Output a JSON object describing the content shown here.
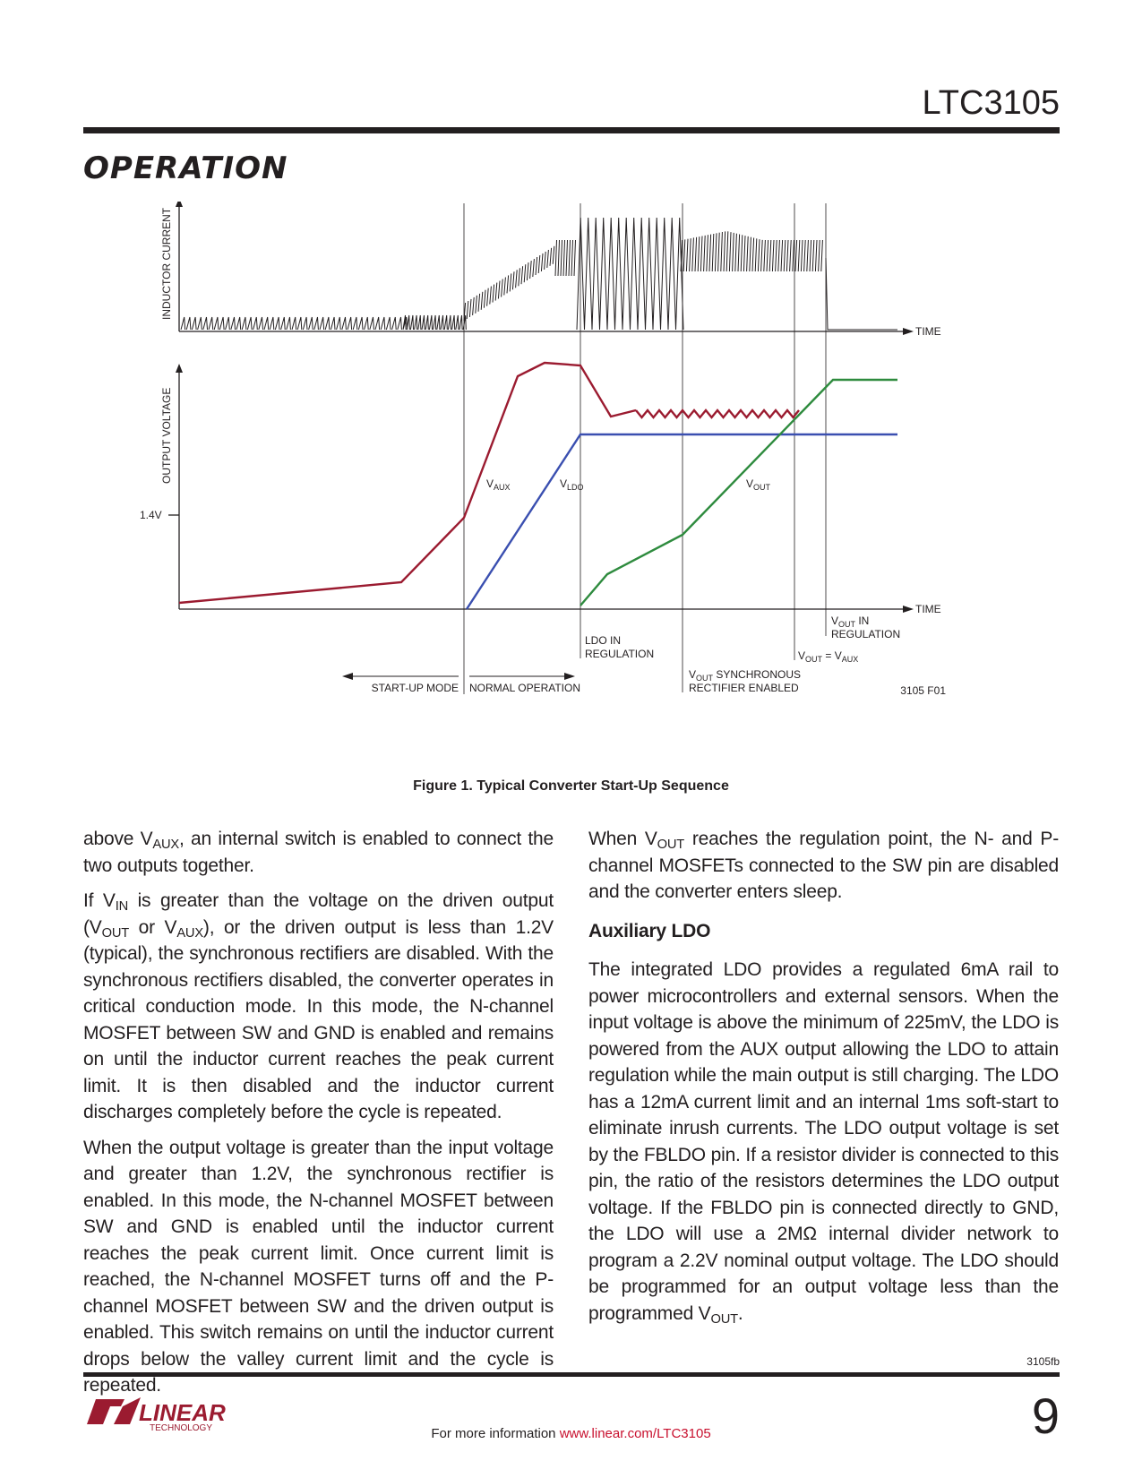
{
  "header": {
    "part_number": "LTC3105",
    "section_title": "OPERATION"
  },
  "figure": {
    "axis_labels": {
      "inductor_current": "INDUCTOR CURRENT",
      "output_voltage": "OUTPUT VOLTAGE",
      "time_top": "TIME",
      "time_bottom": "TIME",
      "voltage_tick": "1.4V"
    },
    "curve_labels": {
      "vaux_main": "V",
      "vaux_sub": "AUX",
      "vldo_main": "V",
      "vldo_sub": "LDO",
      "vout_main": "V",
      "vout_sub": "OUT"
    },
    "annotations": {
      "startup_mode": "START-UP MODE",
      "normal_operation": "NORMAL OPERATION",
      "ldo_reg_1": "LDO IN",
      "ldo_reg_2": "REGULATION",
      "vout_sync_main": "V",
      "vout_sync_sub": "OUT",
      "vout_sync_rest": " SYNCHRONOUS",
      "vout_sync_2": "RECTIFIER ENABLED",
      "vout_eq_v1": "V",
      "vout_eq_sub1": "OUT",
      "vout_eq_mid": " = V",
      "vout_eq_sub2": "AUX",
      "vout_reg_main": "V",
      "vout_reg_sub": "OUT",
      "vout_reg_rest": " IN",
      "vout_reg_2": "REGULATION",
      "figure_code": "3105 F01"
    },
    "colors": {
      "vaux": "#9b1b30",
      "vldo": "#3a4fb0",
      "vout": "#2e8b3e"
    },
    "caption": "Figure 1. Typical Converter Start-Up Sequence"
  },
  "left_column": {
    "p1_a": "above V",
    "p1_sub": "AUX",
    "p1_b": ", an internal switch is enabled to connect the two outputs together.",
    "p2_a": "If V",
    "p2_sub1": "IN",
    "p2_b": " is greater than the voltage on the driven output (V",
    "p2_sub2": "OUT",
    "p2_c": " or V",
    "p2_sub3": "AUX",
    "p2_d": "), or the driven output is less than 1.2V (typical), the synchronous rectifiers are disabled. With the synchronous rectifiers disabled, the converter operates in critical conduction mode. In this mode, the N-channel MOSFET between SW and GND is enabled and remains on until the inductor current reaches the peak current limit. It is then disabled and the inductor current discharges completely before the cycle is repeated.",
    "p3": "When the output voltage is greater than the input voltage and greater than 1.2V, the synchronous rectifier is enabled. In this mode, the N-channel MOSFET between SW and GND is enabled until the inductor current reaches the peak current limit. Once current limit is reached, the N-channel MOSFET turns off and the P-channel MOSFET between SW and the driven output is enabled. This switch remains on until the inductor current drops below the valley current limit and the cycle is repeated."
  },
  "right_column": {
    "p1_a": "When V",
    "p1_sub": "OUT",
    "p1_b": " reaches the regulation point, the N- and P-channel MOSFETs connected to the SW pin are disabled and the converter enters sleep.",
    "heading": "Auxiliary LDO",
    "p2_a": "The integrated LDO provides a regulated 6mA rail to power microcontrollers and external sensors. When the input voltage is above the minimum of 225mV, the LDO is powered from the AUX output allowing the LDO to attain regulation while the main output is still charging. The LDO has a 12mA current limit and an internal 1ms soft-start to eliminate inrush currents. The LDO output voltage is set by the FBLDO pin. If a resistor divider is connected to this pin, the ratio of the resistors determines the LDO output voltage. If the FBLDO pin is connected directly to GND, the LDO will use a 2MΩ internal divider network to program a 2.2V nominal output voltage. The LDO should be programmed for an output voltage less than the programmed V",
    "p2_sub": "OUT",
    "p2_b": "."
  },
  "footer": {
    "doc_number": "3105fb",
    "info_text": "For more information ",
    "info_url": "www.linear.com/LTC3105",
    "page_number": "9",
    "logo_text": "LINEAR",
    "logo_sub": "TECHNOLOGY"
  }
}
